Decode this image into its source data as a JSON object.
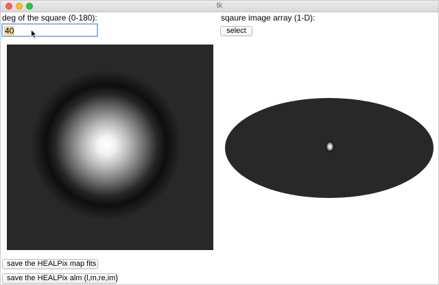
{
  "window": {
    "title": "tk"
  },
  "left_panel": {
    "deg_label": "deg of the square (0-180):",
    "deg_value": "40"
  },
  "right_panel": {
    "array_label": "sqaure image array (1-D):",
    "select_label": "select"
  },
  "buttons": {
    "save_fits_label": "save the HEALPix map fits",
    "save_alm_label": "save the HEALPix alm (l,m,re,im)"
  },
  "colors": {
    "canvas_background": "#282828",
    "entry_focus_border": "#8cb7ea",
    "entry_selection": "#f7d9a3"
  },
  "icons": {
    "cursor": "arrow-cursor-icon"
  }
}
